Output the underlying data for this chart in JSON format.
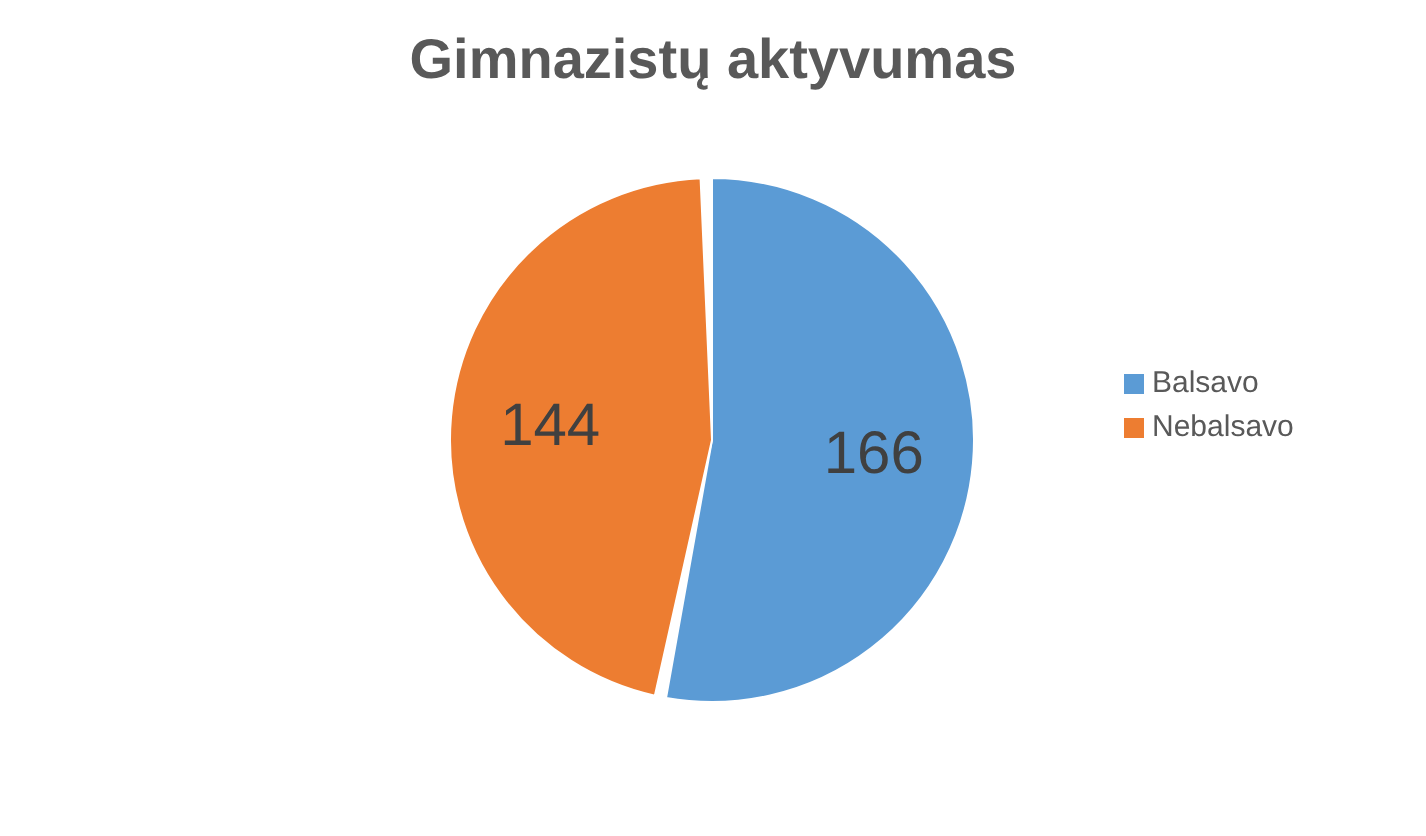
{
  "chart_data": {
    "type": "pie",
    "title": "Gimnazistų aktyvumas",
    "categories": [
      "Balsavo",
      "Nebalsavo"
    ],
    "values": [
      166,
      144
    ],
    "colors": [
      "#5b9bd5",
      "#ed7d31"
    ],
    "data_labels": true,
    "legend": "right"
  }
}
